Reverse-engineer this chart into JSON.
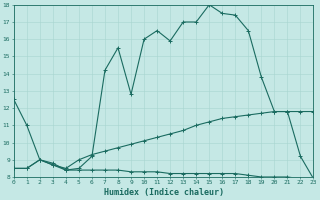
{
  "xlabel": "Humidex (Indice chaleur)",
  "background_color": "#c5e8e5",
  "line_color": "#1a6b60",
  "grid_color": "#a8d5d0",
  "xlim": [
    0,
    23
  ],
  "ylim": [
    8,
    18
  ],
  "xticks": [
    0,
    1,
    2,
    3,
    4,
    5,
    6,
    7,
    8,
    9,
    10,
    11,
    12,
    13,
    14,
    15,
    16,
    17,
    18,
    19,
    20,
    21,
    22,
    23
  ],
  "yticks": [
    8,
    9,
    10,
    11,
    12,
    13,
    14,
    15,
    16,
    17,
    18
  ],
  "line1_x": [
    0,
    1,
    2,
    3,
    4,
    5,
    6,
    7,
    8,
    9,
    10,
    11,
    12,
    13,
    14,
    15,
    16,
    17,
    18,
    19,
    20,
    21,
    22,
    23
  ],
  "line1_y": [
    12.5,
    11.0,
    9.0,
    8.8,
    8.4,
    8.5,
    9.2,
    14.2,
    15.5,
    12.8,
    16.0,
    16.5,
    15.9,
    17.0,
    17.0,
    18.0,
    17.5,
    17.4,
    16.5,
    13.8,
    11.8,
    11.8,
    9.2,
    7.9
  ],
  "line2_x": [
    0,
    1,
    2,
    3,
    4,
    5,
    6,
    7,
    8,
    9,
    10,
    11,
    12,
    13,
    14,
    15,
    16,
    17,
    18,
    19,
    20,
    21,
    22,
    23
  ],
  "line2_y": [
    8.5,
    8.5,
    9.0,
    8.7,
    8.4,
    8.4,
    8.4,
    8.4,
    8.4,
    8.3,
    8.3,
    8.3,
    8.2,
    8.2,
    8.2,
    8.2,
    8.2,
    8.2,
    8.1,
    8.0,
    8.0,
    8.0,
    7.9,
    7.9
  ],
  "line3_x": [
    0,
    1,
    2,
    3,
    4,
    5,
    6,
    7,
    8,
    9,
    10,
    11,
    12,
    13,
    14,
    15,
    16,
    17,
    18,
    19,
    20,
    21,
    22,
    23
  ],
  "line3_y": [
    8.5,
    8.5,
    9.0,
    8.7,
    8.5,
    9.0,
    9.3,
    9.5,
    9.7,
    9.9,
    10.1,
    10.3,
    10.5,
    10.7,
    11.0,
    11.2,
    11.4,
    11.5,
    11.6,
    11.7,
    11.8,
    11.8,
    11.8,
    11.8
  ]
}
